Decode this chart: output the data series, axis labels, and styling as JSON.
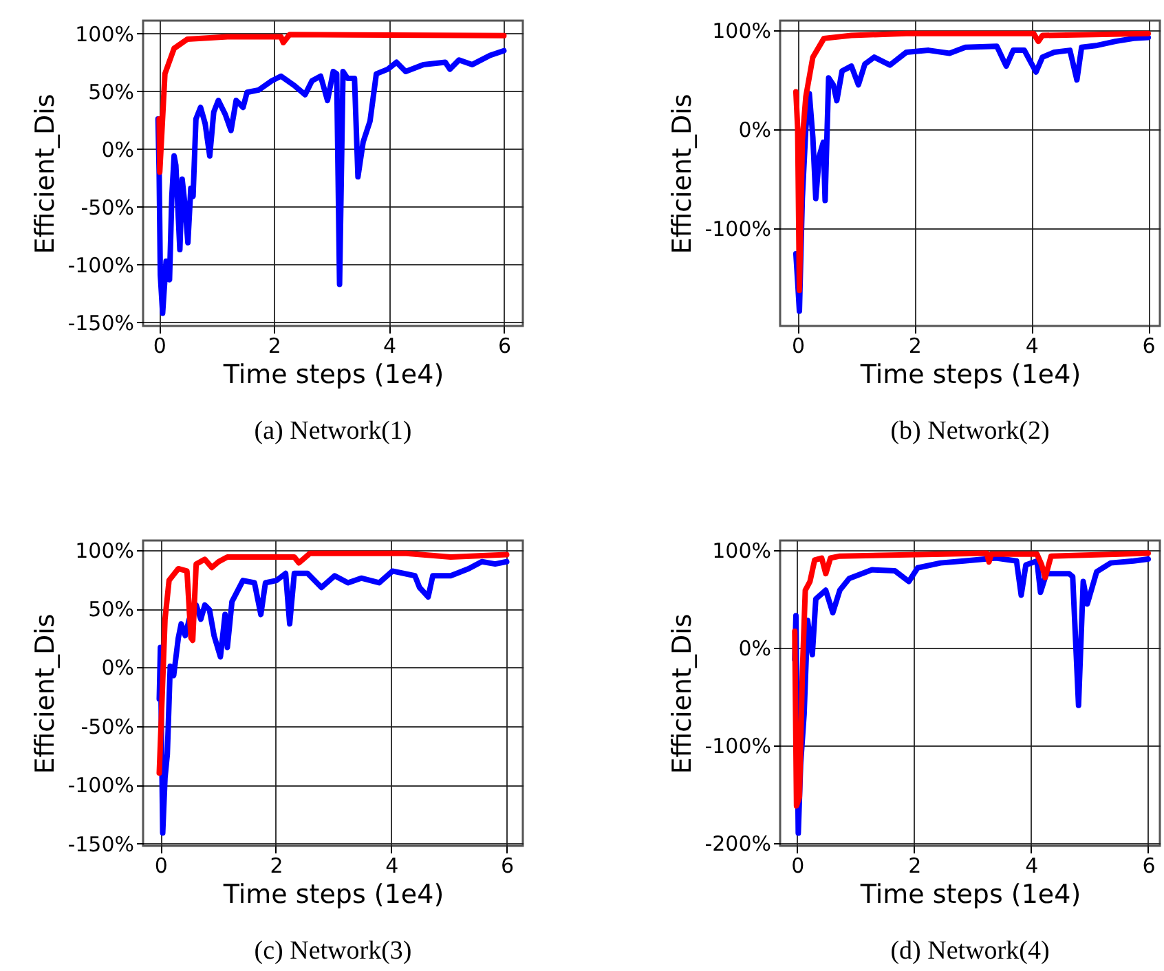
{
  "chart_data": [
    {
      "type": "line",
      "title": "(a) Network(1)",
      "xlabel": "Time steps (1e4)",
      "ylabel": "Efficient_Dis",
      "grid": true,
      "line_style": "solid",
      "xlim": [
        -0.28,
        6.33
      ],
      "xticks": [
        0,
        2,
        4,
        6
      ],
      "ylim": [
        -153,
        111
      ],
      "yticks": [
        {
          "value": 100,
          "label": "100%"
        },
        {
          "value": 50,
          "label": "50%"
        },
        {
          "value": 0,
          "label": "0%"
        },
        {
          "value": -50,
          "label": "-50%"
        },
        {
          "value": -100,
          "label": "-100%"
        },
        {
          "value": -150,
          "label": "-150%"
        }
      ],
      "series": [
        {
          "color": "#0000ff",
          "x": [
            -0.02,
            0,
            0.02,
            0.06,
            0.12,
            0.18,
            0.22,
            0.26,
            0.29,
            0.36,
            0.4,
            0.45,
            0.5,
            0.55,
            0.59,
            0.64,
            0.72,
            0.8,
            0.88,
            0.95,
            1.03,
            1.15,
            1.25,
            1.34,
            1.46,
            1.53,
            1.73,
            1.96,
            2.12,
            2.35,
            2.54,
            2.66,
            2.81,
            2.93,
            3.03,
            3.09,
            3.14,
            3.2,
            3.28,
            3.4,
            3.46,
            3.55,
            3.67,
            3.78,
            3.98,
            4.13,
            4.29,
            4.6,
            4.98,
            5.06,
            5.22,
            5.45,
            5.76,
            6
          ],
          "values": [
            26,
            -22,
            -109,
            -142,
            -97,
            -113,
            -41,
            -6,
            -14,
            -87,
            -26,
            -49,
            -81,
            -34,
            -41,
            26,
            36,
            22,
            -6,
            32,
            42,
            30,
            16,
            42,
            36,
            49,
            51,
            59,
            63,
            55,
            47,
            59,
            63,
            42,
            67,
            65,
            -117,
            67,
            61,
            61,
            -24,
            6,
            24,
            65,
            69,
            75,
            67,
            73,
            75,
            69,
            77,
            73,
            81,
            85
          ]
        },
        {
          "color": "#ff0000",
          "x": [
            0,
            0.01,
            0.1,
            0.26,
            0.49,
            1.19,
            2.12,
            2.16,
            2.27,
            6
          ],
          "values": [
            26,
            -20,
            65,
            87,
            95,
            97,
            97,
            92,
            99,
            98
          ]
        }
      ]
    },
    {
      "type": "line",
      "title": "(b) Network(2)",
      "xlabel": "Time steps (1e4)",
      "ylabel": "Efficient_Dis",
      "grid": true,
      "line_style": "solid",
      "xlim": [
        -0.3,
        6.2
      ],
      "xticks": [
        0,
        2,
        4,
        6
      ],
      "ylim": [
        -199,
        110
      ],
      "yticks": [
        {
          "value": 100,
          "label": "100%"
        },
        {
          "value": 0,
          "label": "0%"
        },
        {
          "value": -100,
          "label": "-100%"
        }
      ],
      "series": [
        {
          "color": "#0000ff",
          "x": [
            -0.03,
            0,
            0.03,
            0.08,
            0.14,
            0.2,
            0.26,
            0.31,
            0.37,
            0.44,
            0.47,
            0.53,
            0.61,
            0.67,
            0.76,
            0.92,
            1.04,
            1.15,
            1.31,
            1.58,
            1.86,
            2.24,
            2.6,
            2.87,
            3.41,
            3.57,
            3.69,
            3.88,
            4.08,
            4.19,
            4.39,
            4.66,
            4.78,
            4.86,
            5.13,
            5.44,
            5.75,
            6
          ],
          "values": [
            -126,
            -154,
            -184,
            -70,
            1,
            36,
            -8,
            -70,
            -27,
            -13,
            -72,
            52,
            45,
            29,
            59,
            64,
            45,
            66,
            73,
            65,
            78,
            80,
            77,
            83,
            84,
            64,
            80,
            80,
            58,
            73,
            78,
            80,
            50,
            83,
            85,
            89,
            92,
            93
          ]
        },
        {
          "color": "#ff0000",
          "x": [
            -0.03,
            0,
            0.03,
            0.08,
            0.14,
            0.26,
            0.45,
            0.92,
            1.86,
            4.04,
            4.12,
            4.19,
            6
          ],
          "values": [
            38,
            1,
            -163,
            -11,
            33,
            73,
            92,
            95,
            97,
            97,
            89,
            95,
            97
          ]
        }
      ]
    },
    {
      "type": "line",
      "title": "(c) Network(3)",
      "xlabel": "Time steps (1e4)",
      "ylabel": "Efficient_Dis",
      "grid": true,
      "line_style": "solid",
      "xlim": [
        -0.3,
        6.28
      ],
      "xticks": [
        0,
        2,
        4,
        6
      ],
      "ylim": [
        -152,
        108
      ],
      "yticks": [
        {
          "value": 100,
          "label": "100%"
        },
        {
          "value": 50,
          "label": "50%"
        },
        {
          "value": 0,
          "label": "0%"
        },
        {
          "value": -50,
          "label": "-50%"
        },
        {
          "value": -100,
          "label": "-100%"
        },
        {
          "value": -150,
          "label": "-150%"
        }
      ],
      "series": [
        {
          "color": "#0000ff",
          "x": [
            -0.02,
            0,
            0.04,
            0.08,
            0.12,
            0.17,
            0.23,
            0.31,
            0.36,
            0.43,
            0.5,
            0.58,
            0.62,
            0.7,
            0.77,
            0.85,
            0.93,
            1.04,
            1.12,
            1.16,
            1.24,
            1.43,
            1.63,
            1.74,
            1.82,
            2.01,
            2.17,
            2.24,
            2.32,
            2.55,
            2.79,
            3.02,
            3.25,
            3.48,
            3.79,
            4.02,
            4.41,
            4.49,
            4.64,
            4.72,
            5.03,
            5.34,
            5.57,
            5.8,
            6
          ],
          "values": [
            -27,
            17,
            -141,
            -94,
            -74,
            1,
            -7,
            25,
            37,
            27,
            41,
            49,
            53,
            41,
            53,
            49,
            27,
            9,
            45,
            17,
            56,
            74,
            72,
            45,
            72,
            74,
            80,
            37,
            80,
            80,
            68,
            78,
            72,
            76,
            72,
            82,
            78,
            68,
            60,
            78,
            78,
            84,
            90,
            88,
            90
          ]
        },
        {
          "color": "#ff0000",
          "x": [
            -0.02,
            0.02,
            0.08,
            0.15,
            0.31,
            0.46,
            0.53,
            0.56,
            0.62,
            0.77,
            0.89,
            1.01,
            1.16,
            2.32,
            2.4,
            2.59,
            4.26,
            5.03,
            6
          ],
          "values": [
            -90,
            -38,
            41,
            74,
            84,
            82,
            25,
            23,
            88,
            92,
            85,
            90,
            94,
            94,
            89,
            97,
            97,
            94,
            96
          ]
        }
      ]
    },
    {
      "type": "line",
      "title": "(d) Network(4)",
      "xlabel": "Time steps (1e4)",
      "ylabel": "Efficient_Dis",
      "grid": true,
      "line_style": "solid",
      "xlim": [
        -0.29,
        6.2
      ],
      "xticks": [
        0,
        2,
        4,
        6
      ],
      "ylim": [
        -203,
        110
      ],
      "yticks": [
        {
          "value": 100,
          "label": "100%"
        },
        {
          "value": 0,
          "label": "0%"
        },
        {
          "value": -100,
          "label": "-100%"
        },
        {
          "value": -200,
          "label": "-200%"
        }
      ],
      "series": [
        {
          "color": "#0000ff",
          "x": [
            -0.04,
            -0.02,
            0.02,
            0.06,
            0.12,
            0.18,
            0.26,
            0.32,
            0.49,
            0.61,
            0.73,
            0.89,
            1.28,
            1.67,
            1.91,
            2.06,
            2.45,
            2.85,
            3.4,
            3.75,
            3.83,
            3.91,
            4.1,
            4.16,
            4.26,
            4.65,
            4.71,
            4.81,
            4.89,
            4.96,
            5.12,
            5.36,
            5.75,
            6
          ],
          "values": [
            -12,
            33,
            -190,
            -120,
            -68,
            28,
            -7,
            50,
            59,
            36,
            59,
            71,
            80,
            79,
            68,
            82,
            87,
            89,
            92,
            89,
            54,
            85,
            89,
            57,
            76,
            76,
            73,
            -59,
            68,
            45,
            78,
            87,
            89,
            91
          ]
        },
        {
          "color": "#ff0000",
          "x": [
            -0.04,
            -0.01,
            0.04,
            0.09,
            0.14,
            0.22,
            0.3,
            0.42,
            0.49,
            0.57,
            0.73,
            3.24,
            3.28,
            3.32,
            4.1,
            4.18,
            4.24,
            4.34,
            6
          ],
          "values": [
            17,
            -162,
            -153,
            -26,
            59,
            68,
            90,
            92,
            76,
            92,
            94,
            97,
            88,
            96,
            96,
            85,
            72,
            94,
            97
          ]
        }
      ]
    }
  ]
}
